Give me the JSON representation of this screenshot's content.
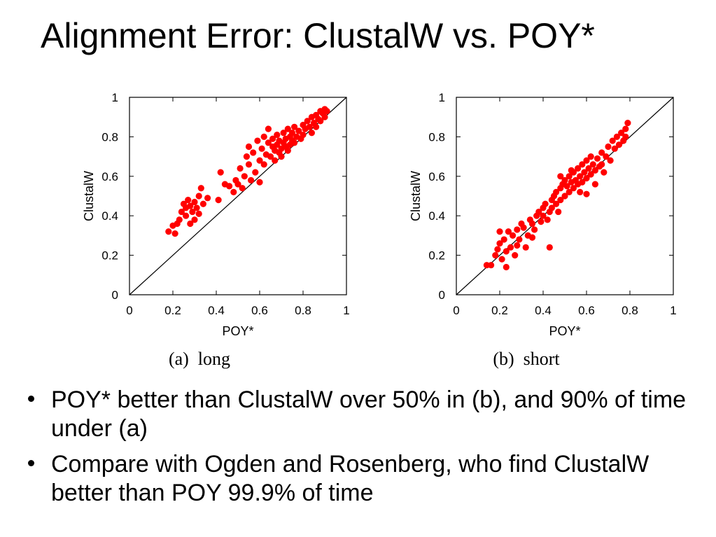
{
  "slide": {
    "title": "Alignment Error: ClustalW vs. POY*",
    "bullets": [
      "POY* better than ClustalW over 50% in (b), and 90% of time under (a)",
      "Compare with Ogden and Rosenberg, who find ClustalW better than POY 99.9% of time"
    ]
  },
  "colors": {
    "points": "#ff0000",
    "axes": "#000000"
  },
  "chart_data": [
    {
      "type": "scatter",
      "caption": "(a)  long",
      "xlabel": "POY*",
      "ylabel": "ClustalW",
      "xlim": [
        0,
        1
      ],
      "ylim": [
        0,
        1
      ],
      "xticks": [
        "0",
        "0.2",
        "0.4",
        "0.6",
        "0.8",
        "1"
      ],
      "yticks": [
        "0",
        "0.2",
        "0.4",
        "0.6",
        "0.8",
        "1"
      ],
      "reference_line": "y = x",
      "grid": false,
      "series": [
        {
          "points": [
            [
              0.18,
              0.32
            ],
            [
              0.2,
              0.35
            ],
            [
              0.21,
              0.31
            ],
            [
              0.22,
              0.36
            ],
            [
              0.23,
              0.38
            ],
            [
              0.24,
              0.42
            ],
            [
              0.25,
              0.46
            ],
            [
              0.26,
              0.44
            ],
            [
              0.26,
              0.4
            ],
            [
              0.27,
              0.48
            ],
            [
              0.28,
              0.45
            ],
            [
              0.28,
              0.36
            ],
            [
              0.29,
              0.42
            ],
            [
              0.3,
              0.47
            ],
            [
              0.3,
              0.38
            ],
            [
              0.31,
              0.44
            ],
            [
              0.32,
              0.5
            ],
            [
              0.32,
              0.41
            ],
            [
              0.33,
              0.54
            ],
            [
              0.34,
              0.46
            ],
            [
              0.36,
              0.49
            ],
            [
              0.41,
              0.48
            ],
            [
              0.42,
              0.62
            ],
            [
              0.44,
              0.56
            ],
            [
              0.46,
              0.55
            ],
            [
              0.48,
              0.52
            ],
            [
              0.49,
              0.58
            ],
            [
              0.5,
              0.56
            ],
            [
              0.51,
              0.64
            ],
            [
              0.52,
              0.54
            ],
            [
              0.53,
              0.6
            ],
            [
              0.54,
              0.7
            ],
            [
              0.55,
              0.66
            ],
            [
              0.55,
              0.75
            ],
            [
              0.56,
              0.58
            ],
            [
              0.57,
              0.72
            ],
            [
              0.58,
              0.62
            ],
            [
              0.59,
              0.78
            ],
            [
              0.6,
              0.68
            ],
            [
              0.6,
              0.57
            ],
            [
              0.61,
              0.74
            ],
            [
              0.62,
              0.8
            ],
            [
              0.62,
              0.66
            ],
            [
              0.63,
              0.71
            ],
            [
              0.64,
              0.77
            ],
            [
              0.64,
              0.84
            ],
            [
              0.65,
              0.7
            ],
            [
              0.66,
              0.75
            ],
            [
              0.66,
              0.79
            ],
            [
              0.67,
              0.73
            ],
            [
              0.67,
              0.68
            ],
            [
              0.68,
              0.76
            ],
            [
              0.68,
              0.81
            ],
            [
              0.69,
              0.72
            ],
            [
              0.69,
              0.78
            ],
            [
              0.7,
              0.74
            ],
            [
              0.7,
              0.7
            ],
            [
              0.71,
              0.77
            ],
            [
              0.71,
              0.82
            ],
            [
              0.72,
              0.75
            ],
            [
              0.72,
              0.79
            ],
            [
              0.73,
              0.73
            ],
            [
              0.73,
              0.84
            ],
            [
              0.74,
              0.76
            ],
            [
              0.74,
              0.8
            ],
            [
              0.75,
              0.78
            ],
            [
              0.75,
              0.82
            ],
            [
              0.76,
              0.77
            ],
            [
              0.76,
              0.85
            ],
            [
              0.77,
              0.8
            ],
            [
              0.78,
              0.83
            ],
            [
              0.79,
              0.79
            ],
            [
              0.8,
              0.86
            ],
            [
              0.8,
              0.81
            ],
            [
              0.81,
              0.84
            ],
            [
              0.82,
              0.88
            ],
            [
              0.83,
              0.85
            ],
            [
              0.84,
              0.82
            ],
            [
              0.84,
              0.9
            ],
            [
              0.85,
              0.87
            ],
            [
              0.86,
              0.91
            ],
            [
              0.86,
              0.85
            ],
            [
              0.87,
              0.89
            ],
            [
              0.88,
              0.93
            ],
            [
              0.88,
              0.88
            ],
            [
              0.89,
              0.92
            ],
            [
              0.9,
              0.94
            ],
            [
              0.9,
              0.9
            ],
            [
              0.91,
              0.93
            ]
          ]
        }
      ]
    },
    {
      "type": "scatter",
      "caption": "(b)  short",
      "xlabel": "POY*",
      "ylabel": "ClustalW",
      "xlim": [
        0,
        1
      ],
      "ylim": [
        0,
        1
      ],
      "xticks": [
        "0",
        "0.2",
        "0.4",
        "0.6",
        "0.8",
        "1"
      ],
      "yticks": [
        "0",
        "0.2",
        "0.4",
        "0.6",
        "0.8",
        "1"
      ],
      "reference_line": "y = x",
      "grid": false,
      "series": [
        {
          "points": [
            [
              0.14,
              0.15
            ],
            [
              0.16,
              0.15
            ],
            [
              0.18,
              0.2
            ],
            [
              0.19,
              0.23
            ],
            [
              0.2,
              0.26
            ],
            [
              0.2,
              0.32
            ],
            [
              0.21,
              0.18
            ],
            [
              0.22,
              0.28
            ],
            [
              0.23,
              0.22
            ],
            [
              0.23,
              0.14
            ],
            [
              0.24,
              0.32
            ],
            [
              0.25,
              0.24
            ],
            [
              0.26,
              0.3
            ],
            [
              0.27,
              0.2
            ],
            [
              0.28,
              0.25
            ],
            [
              0.28,
              0.33
            ],
            [
              0.29,
              0.28
            ],
            [
              0.3,
              0.36
            ],
            [
              0.31,
              0.34
            ],
            [
              0.32,
              0.24
            ],
            [
              0.33,
              0.3
            ],
            [
              0.34,
              0.38
            ],
            [
              0.35,
              0.36
            ],
            [
              0.36,
              0.33
            ],
            [
              0.37,
              0.4
            ],
            [
              0.38,
              0.42
            ],
            [
              0.39,
              0.37
            ],
            [
              0.4,
              0.44
            ],
            [
              0.4,
              0.4
            ],
            [
              0.41,
              0.46
            ],
            [
              0.42,
              0.38
            ],
            [
              0.43,
              0.42
            ],
            [
              0.44,
              0.48
            ],
            [
              0.44,
              0.44
            ],
            [
              0.45,
              0.5
            ],
            [
              0.46,
              0.46
            ],
            [
              0.46,
              0.52
            ],
            [
              0.47,
              0.42
            ],
            [
              0.48,
              0.54
            ],
            [
              0.48,
              0.48
            ],
            [
              0.49,
              0.56
            ],
            [
              0.5,
              0.5
            ],
            [
              0.5,
              0.58
            ],
            [
              0.51,
              0.55
            ],
            [
              0.52,
              0.52
            ],
            [
              0.52,
              0.6
            ],
            [
              0.53,
              0.57
            ],
            [
              0.54,
              0.54
            ],
            [
              0.54,
              0.62
            ],
            [
              0.55,
              0.58
            ],
            [
              0.56,
              0.56
            ],
            [
              0.56,
              0.64
            ],
            [
              0.57,
              0.6
            ],
            [
              0.58,
              0.57
            ],
            [
              0.58,
              0.66
            ],
            [
              0.59,
              0.62
            ],
            [
              0.6,
              0.59
            ],
            [
              0.6,
              0.68
            ],
            [
              0.61,
              0.64
            ],
            [
              0.62,
              0.61
            ],
            [
              0.62,
              0.7
            ],
            [
              0.63,
              0.66
            ],
            [
              0.64,
              0.63
            ],
            [
              0.64,
              0.56
            ],
            [
              0.65,
              0.69
            ],
            [
              0.66,
              0.65
            ],
            [
              0.67,
              0.72
            ],
            [
              0.68,
              0.62
            ],
            [
              0.69,
              0.7
            ],
            [
              0.7,
              0.75
            ],
            [
              0.71,
              0.68
            ],
            [
              0.72,
              0.78
            ],
            [
              0.73,
              0.74
            ],
            [
              0.74,
              0.8
            ],
            [
              0.75,
              0.76
            ],
            [
              0.76,
              0.82
            ],
            [
              0.77,
              0.78
            ],
            [
              0.78,
              0.84
            ],
            [
              0.78,
              0.8
            ],
            [
              0.79,
              0.87
            ],
            [
              0.53,
              0.63
            ],
            [
              0.6,
              0.51
            ],
            [
              0.48,
              0.6
            ],
            [
              0.43,
              0.24
            ],
            [
              0.35,
              0.29
            ],
            [
              0.67,
              0.66
            ],
            [
              0.57,
              0.52
            ]
          ]
        }
      ]
    }
  ]
}
